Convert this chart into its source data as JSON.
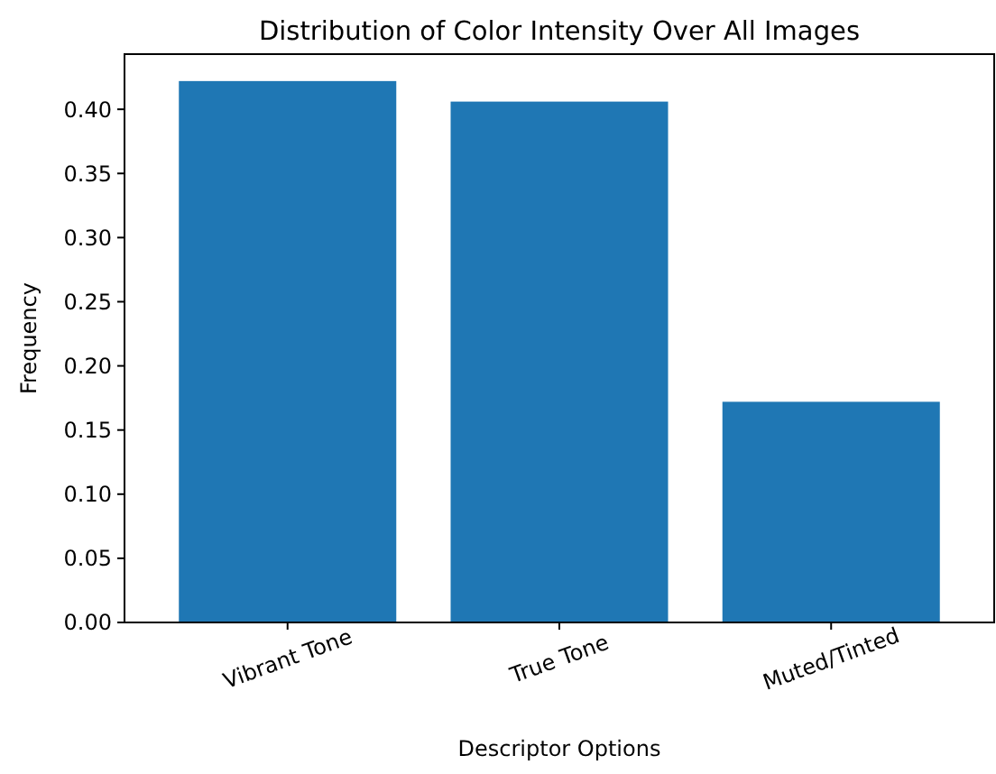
{
  "chart_data": {
    "type": "bar",
    "title": "Distribution of Color Intensity Over All Images",
    "xlabel": "Descriptor Options",
    "ylabel": "Frequency",
    "categories": [
      "Vibrant Tone",
      "True Tone",
      "Muted/Tinted"
    ],
    "values": [
      0.422,
      0.406,
      0.172
    ],
    "color": "#1f77b4",
    "ylim": [
      0,
      0.443
    ],
    "yticks": [
      {
        "value": 0,
        "label": "0.00"
      },
      {
        "value": 0.05,
        "label": "0.05"
      },
      {
        "value": 0.1,
        "label": "0.10"
      },
      {
        "value": 0.15,
        "label": "0.15"
      },
      {
        "value": 0.2,
        "label": "0.20"
      },
      {
        "value": 0.25,
        "label": "0.25"
      },
      {
        "value": 0.3,
        "label": "0.30"
      },
      {
        "value": 0.35,
        "label": "0.35"
      },
      {
        "value": 0.4,
        "label": "0.40"
      }
    ],
    "grid": false
  }
}
